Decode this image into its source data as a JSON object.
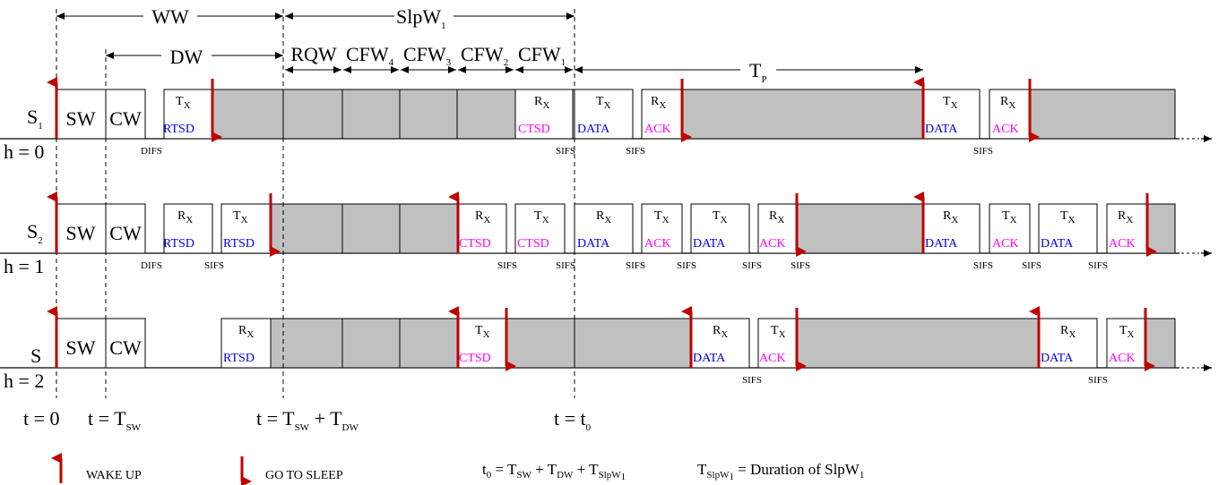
{
  "colors": {
    "sleep_fill": "#c0c0c0",
    "arrow": "#c00000",
    "blue_label": "#0000ee",
    "magenta_label": "#ff00ff"
  },
  "icons": {
    "wake": "red-up-arrow",
    "sleep": "red-down-arrow"
  },
  "windows": {
    "ww": "WW",
    "slpw_base": "SlpW",
    "slpw_sub": "1",
    "dw": "DW",
    "rqw": "RQW",
    "cfw_base": "CFW",
    "cfw_subs": [
      "4",
      "3",
      "2",
      "1"
    ],
    "tp_base": "T",
    "tp_sub": "P"
  },
  "rows": [
    {
      "node_base": "S",
      "node_sub": "1",
      "level": "h = 0"
    },
    {
      "node_base": "S",
      "node_sub": "2",
      "level": "h = 1"
    },
    {
      "node_base": "S",
      "node_sub": "",
      "level": "h = 2"
    }
  ],
  "slots": {
    "sw": "SW",
    "cw": "CW",
    "rx_base": "R",
    "tx_base": "T",
    "x_sub": "X",
    "rtsd": "RTSD",
    "ctsd": "CTSD",
    "data": "DATA",
    "ack": "ACK"
  },
  "gaps": {
    "difs": "DIFS",
    "sifs": "SIFS"
  },
  "times": {
    "t0": "t = 0",
    "tsw_base": "t = T",
    "tsw_sub": "SW",
    "tdw_base": "t = T",
    "tdw_sub1": "SW",
    "tdw_mid": " + T",
    "tdw_sub2": "DW",
    "tt0_base": "t = t",
    "tt0_sub": "0"
  },
  "legend": {
    "wake": "WAKE UP",
    "sleep": "GO TO SLEEP",
    "eq1": {
      "p1": "t",
      "s1": "0",
      "p2": " = T",
      "s2": "SW",
      "p3": " + T",
      "s3": "DW",
      "p4": " + T",
      "s4": "SlpW",
      "s4b": "1"
    },
    "eq2": {
      "p1": "T",
      "s1": "SlpW",
      "s1b": "1",
      "p2": " = Duration of SlpW",
      "s2": "1"
    }
  }
}
